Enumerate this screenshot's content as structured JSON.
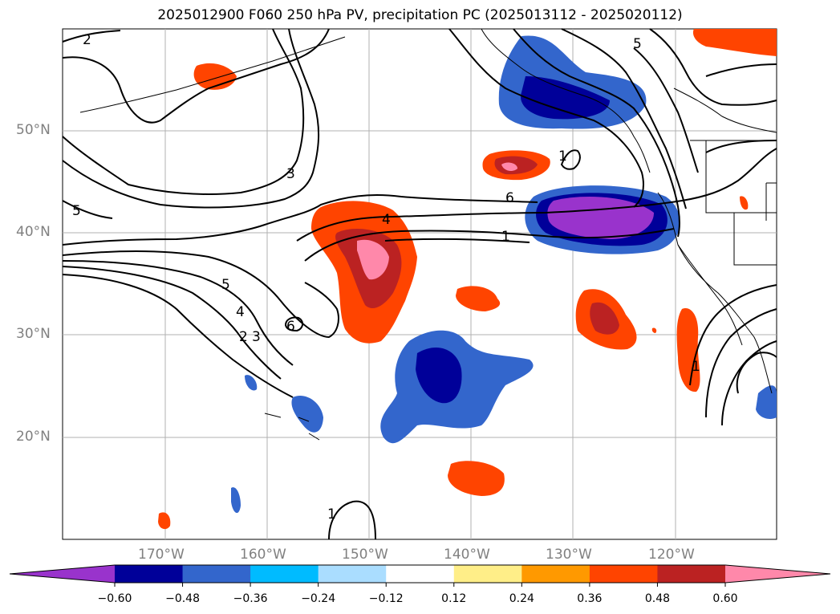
{
  "title": "2025012900 F060 250 hPa PV, precipitation PC (2025013112 - 2025020112)",
  "lat_labels": [
    "50°N",
    "40°N",
    "30°N",
    "20°N"
  ],
  "lon_labels": [
    "170°W",
    "160°W",
    "150°W",
    "140°W",
    "130°W",
    "120°W"
  ],
  "colorbar": {
    "ticks": [
      "−0.60",
      "−0.48",
      "−0.36",
      "−0.24",
      "−0.12",
      "0.12",
      "0.24",
      "0.36",
      "0.48",
      "0.60"
    ],
    "colors": [
      "#9933cc",
      "#000099",
      "#3366cc",
      "#00bbff",
      "#aaddff",
      "#ffffff",
      "#ffee88",
      "#ff9900",
      "#ff4400",
      "#bb2222",
      "#ff88aa"
    ]
  },
  "contour_labels": [
    "2",
    "5",
    "3",
    "6",
    "4",
    "1",
    "5",
    "4",
    "2",
    "3",
    "6",
    "5",
    "1",
    "1",
    "1"
  ],
  "colors": {
    "strong_positive": "#ff4400",
    "positive_core": "#bb2222",
    "positive_peak": "#ff88aa",
    "strong_negative": "#000099",
    "negative": "#3366cc",
    "negative_peak": "#9933cc",
    "grid": "#b0b0b0",
    "axis_label": "#808080"
  }
}
